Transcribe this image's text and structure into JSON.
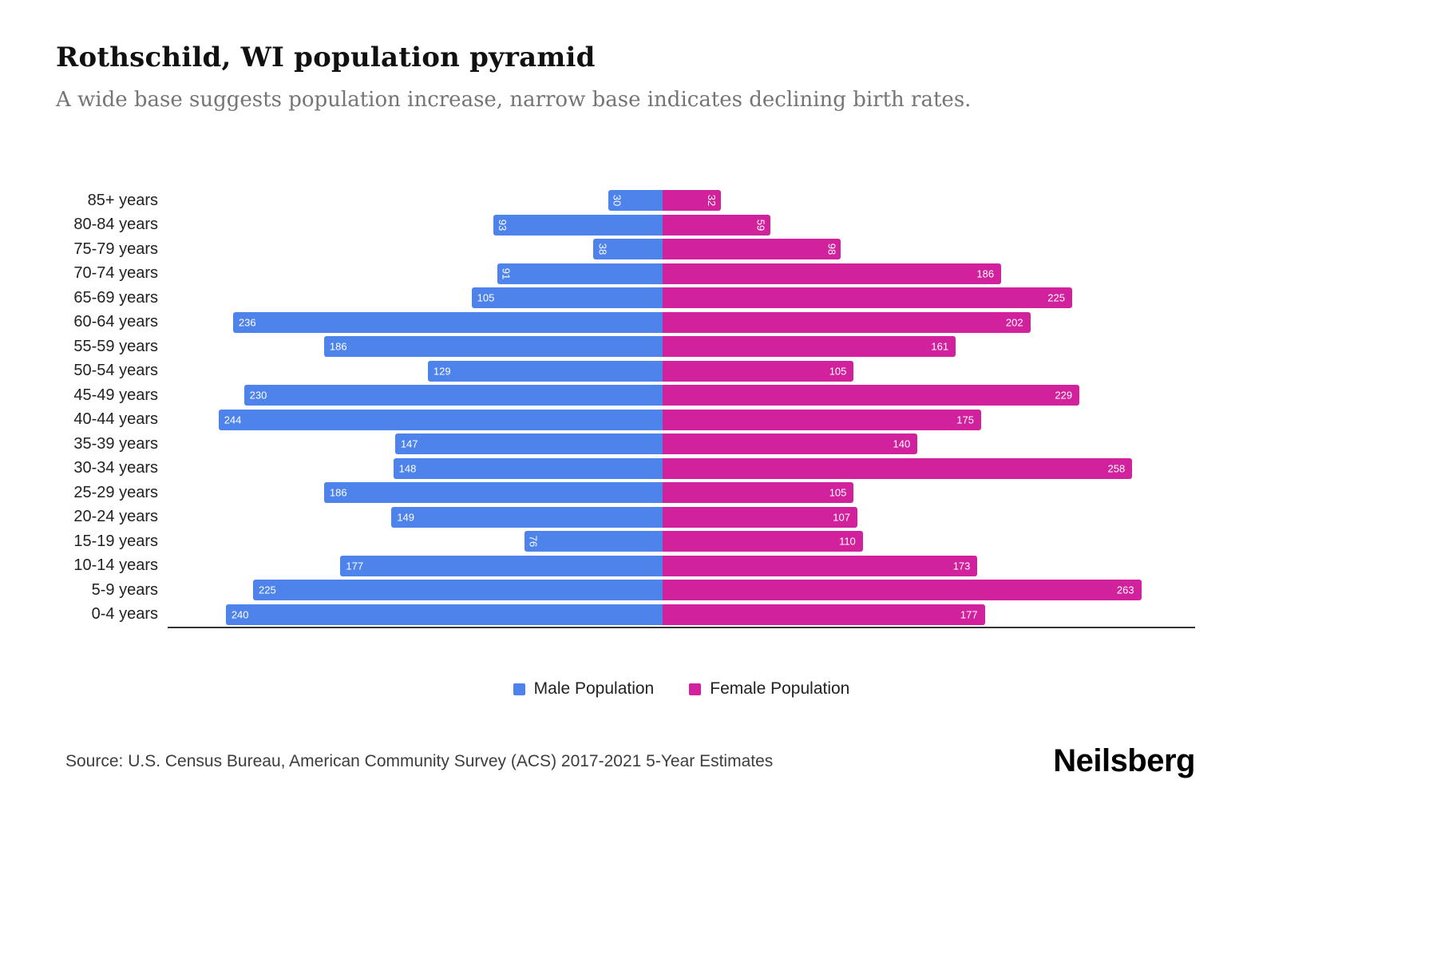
{
  "title": "Rothschild, WI population pyramid",
  "subtitle": "A wide base suggests population increase, narrow base indicates declining birth rates.",
  "source": "Source: U.S. Census Bureau, American Community Survey (ACS) 2017-2021 5-Year Estimates",
  "brand": "Neilsberg",
  "colors": {
    "male": "#4e83ec",
    "female": "#d2219c",
    "title": "#111111",
    "subtitle": "#757575",
    "axis": "#333333"
  },
  "chart_data": {
    "type": "bar",
    "variant": "population-pyramid",
    "orientation": "horizontal-diverging",
    "grid": false,
    "legend_position": "bottom-center",
    "value_label_rotation_threshold": 100,
    "categories": [
      "85+ years",
      "80-84 years",
      "75-79 years",
      "70-74 years",
      "65-69 years",
      "60-64 years",
      "55-59 years",
      "50-54 years",
      "45-49 years",
      "40-44 years",
      "35-39 years",
      "30-34 years",
      "25-29 years",
      "20-24 years",
      "15-19 years",
      "10-14 years",
      "5-9 years",
      "0-4 years"
    ],
    "series": [
      {
        "name": "Male Population",
        "color": "#4e83ec",
        "direction": "left",
        "values": [
          30,
          93,
          38,
          91,
          105,
          236,
          186,
          129,
          230,
          244,
          147,
          148,
          186,
          149,
          76,
          177,
          225,
          240
        ]
      },
      {
        "name": "Female Population",
        "color": "#d2219c",
        "direction": "right",
        "values": [
          32,
          59,
          98,
          186,
          225,
          202,
          161,
          105,
          229,
          175,
          140,
          258,
          105,
          107,
          110,
          173,
          263,
          177
        ]
      }
    ]
  }
}
